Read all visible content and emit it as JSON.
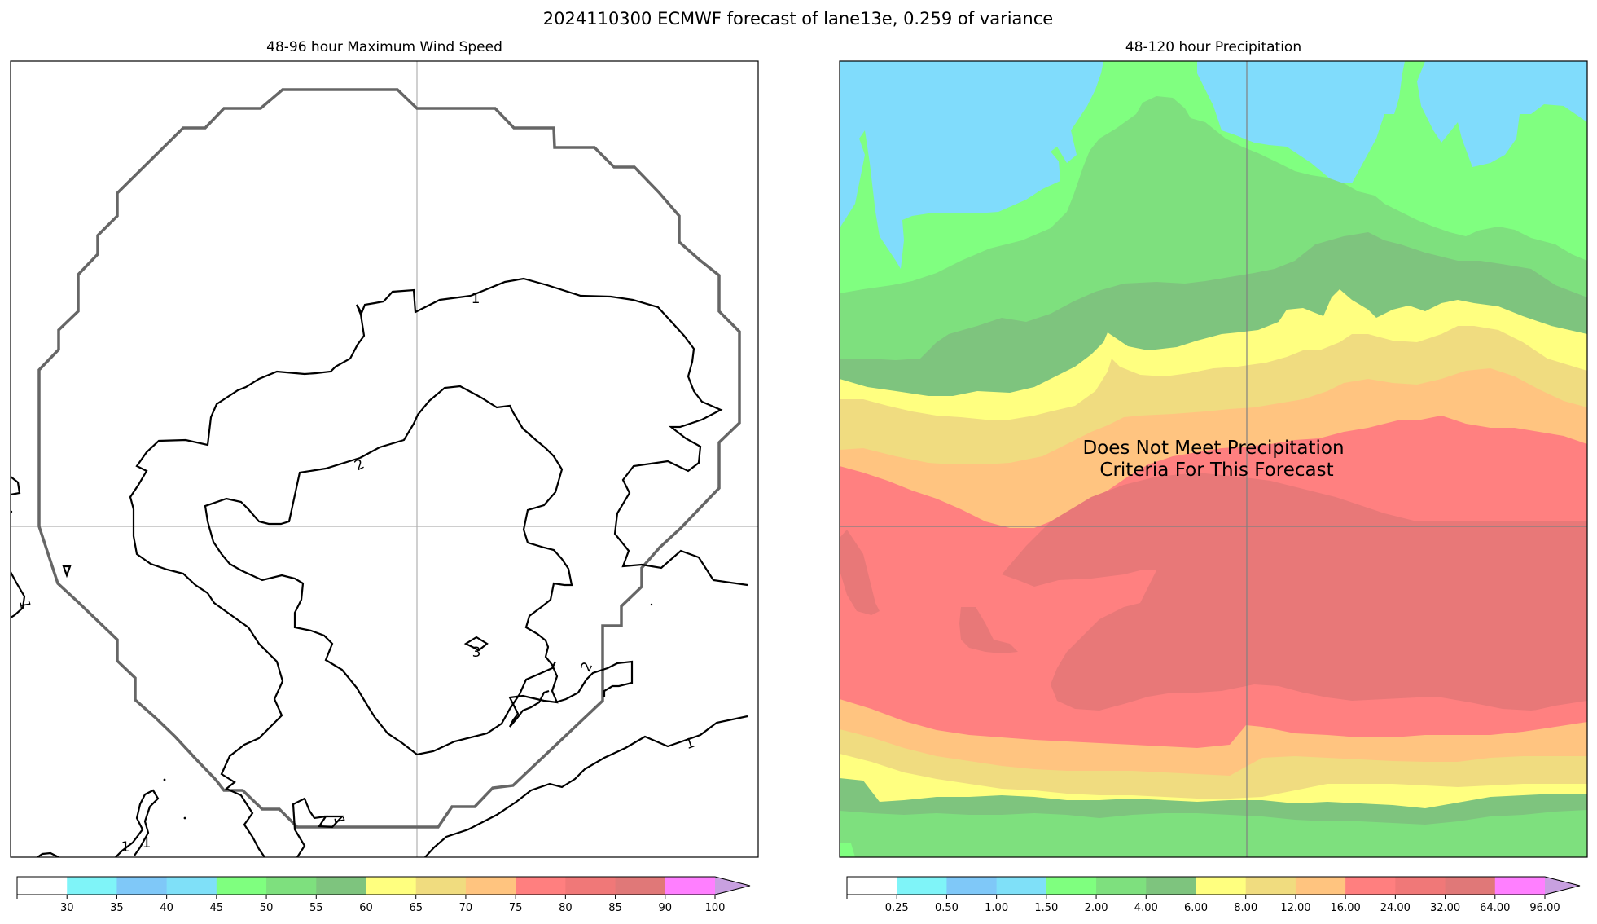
{
  "figure": {
    "suptitle": "2024110300 ECMWF forecast of lane13e, 0.259 of variance"
  },
  "chart_data": [
    {
      "type": "contour",
      "title": "48-96 hour Maximum Wind Speed",
      "contour_labels": [
        {
          "text": "1",
          "level": 1
        },
        {
          "text": "2",
          "level": 2
        },
        {
          "text": "3",
          "level": 3
        },
        {
          "text": "2",
          "level": 2
        },
        {
          "text": "1",
          "level": 1
        },
        {
          "text": "1",
          "level": 1
        },
        {
          "text": "1",
          "level": 1
        },
        {
          "text": "1",
          "level": 1
        },
        {
          "text": "1",
          "level": 1
        }
      ],
      "colorbar": {
        "ticks": [
          "30",
          "35",
          "40",
          "45",
          "50",
          "55",
          "60",
          "65",
          "70",
          "75",
          "80",
          "85",
          "90",
          "100"
        ],
        "colors": [
          "#ffffff",
          "#7ff4f8",
          "#7fc8f8",
          "#7fe0f8",
          "#7fff7f",
          "#7ee07e",
          "#7ec47e",
          "#ffff7f",
          "#f0dc7f",
          "#ffc47f",
          "#ff7f7f",
          "#f07878",
          "#e07878",
          "#ff7fff",
          "#c8a0e0"
        ],
        "extend": "max"
      }
    },
    {
      "type": "heatmap",
      "title": "48-120 hour Precipitation",
      "annotation": [
        "Does Not Meet Precipitation",
        "Criteria For This Forecast"
      ],
      "colorbar": {
        "ticks": [
          "0.25",
          "0.50",
          "1.00",
          "1.50",
          "2.00",
          "4.00",
          "6.00",
          "8.00",
          "12.00",
          "16.00",
          "24.00",
          "32.00",
          "64.00",
          "96.00"
        ],
        "colors": [
          "#ffffff",
          "#7ff4f8",
          "#7fc8f8",
          "#7fe0f8",
          "#7fff7f",
          "#7ee07e",
          "#7ec47e",
          "#ffff7f",
          "#f0dc7f",
          "#ffc47f",
          "#ff7f7f",
          "#f07878",
          "#e07878",
          "#ff7fff",
          "#c8a0e0"
        ],
        "extend": "max"
      }
    }
  ]
}
